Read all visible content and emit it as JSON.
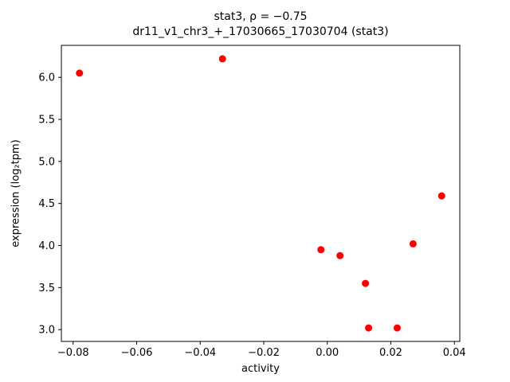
{
  "chart_data": {
    "type": "scatter",
    "title": "stat3, ρ = −0.75",
    "subtitle": "dr11_v1_chr3_+_17030665_17030704 (stat3)",
    "xlabel": "activity",
    "ylabel": "expression (log₂tpm)",
    "xlim": [
      -0.0837,
      0.0417
    ],
    "ylim": [
      2.86,
      6.38
    ],
    "xticks": [
      -0.08,
      -0.06,
      -0.04,
      -0.02,
      0.0,
      0.02,
      0.04
    ],
    "xtick_labels": [
      "−0.08",
      "−0.06",
      "−0.04",
      "−0.02",
      "0.00",
      "0.02",
      "0.04"
    ],
    "yticks": [
      3.0,
      3.5,
      4.0,
      4.5,
      5.0,
      5.5,
      6.0
    ],
    "ytick_labels": [
      "3.0",
      "3.5",
      "4.0",
      "4.5",
      "5.0",
      "5.5",
      "6.0"
    ],
    "marker_color": "#ff0000",
    "axis_color": "#000000",
    "grid": "off",
    "legend": "none",
    "points": [
      {
        "x": -0.078,
        "y": 6.05
      },
      {
        "x": -0.033,
        "y": 6.22
      },
      {
        "x": -0.002,
        "y": 3.95
      },
      {
        "x": 0.004,
        "y": 3.88
      },
      {
        "x": 0.012,
        "y": 3.55
      },
      {
        "x": 0.013,
        "y": 3.02
      },
      {
        "x": 0.022,
        "y": 3.02
      },
      {
        "x": 0.027,
        "y": 4.02
      },
      {
        "x": 0.036,
        "y": 4.59
      }
    ]
  }
}
